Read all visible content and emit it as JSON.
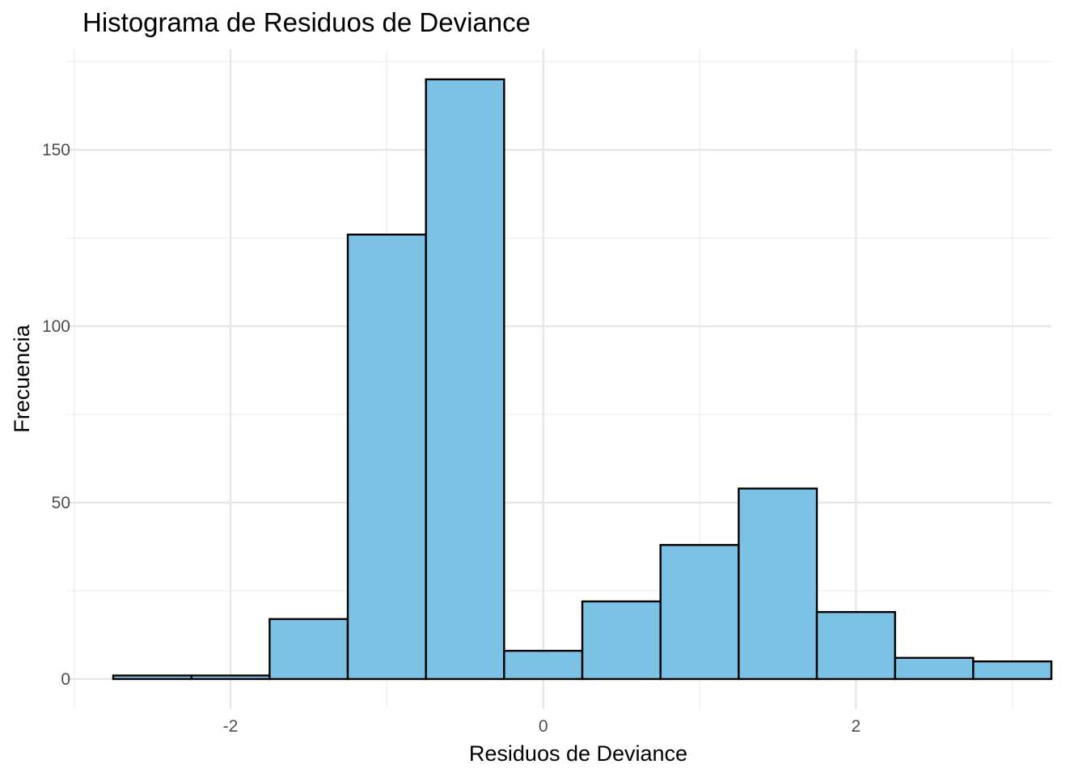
{
  "chart_data": {
    "type": "bar",
    "title": "Histograma de Residuos de Deviance",
    "xlabel": "Residuos de Deviance",
    "ylabel": "Frecuencia",
    "bin_width": 0.5,
    "bins": [
      {
        "start": -2.75,
        "end": -2.25,
        "count": 1
      },
      {
        "start": -2.25,
        "end": -1.75,
        "count": 1
      },
      {
        "start": -1.75,
        "end": -1.25,
        "count": 17
      },
      {
        "start": -1.25,
        "end": -0.75,
        "count": 126
      },
      {
        "start": -0.75,
        "end": -0.25,
        "count": 170
      },
      {
        "start": -0.25,
        "end": 0.25,
        "count": 8
      },
      {
        "start": 0.25,
        "end": 0.75,
        "count": 22
      },
      {
        "start": 0.75,
        "end": 1.25,
        "count": 38
      },
      {
        "start": 1.25,
        "end": 1.75,
        "count": 54
      },
      {
        "start": 1.75,
        "end": 2.25,
        "count": 19
      },
      {
        "start": 2.25,
        "end": 2.75,
        "count": 6
      },
      {
        "start": 2.75,
        "end": 3.25,
        "count": 5
      }
    ],
    "xlim": [
      -3.05,
      3.25
    ],
    "ylim": [
      -8.5,
      178.5
    ],
    "x_major_ticks": [
      -2,
      0,
      2
    ],
    "x_tick_labels": [
      "-2",
      "0",
      "2"
    ],
    "x_minor_ticks": [
      -3,
      -1,
      1,
      3
    ],
    "y_major_ticks": [
      0,
      50,
      100,
      150
    ],
    "y_tick_labels": [
      "0",
      "50",
      "100",
      "150"
    ],
    "y_minor_ticks": [
      25,
      75,
      125,
      175
    ],
    "grid": true,
    "legend": "none",
    "fill_color": "#7BC2E5",
    "outline_color": "#000000"
  }
}
